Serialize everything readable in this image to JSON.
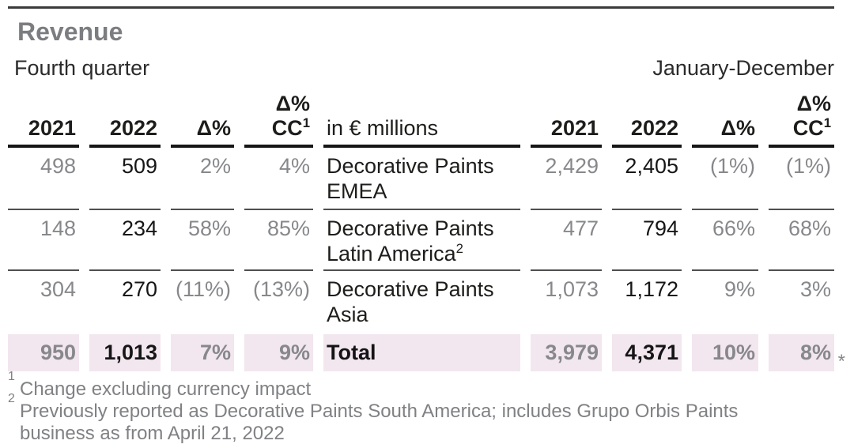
{
  "colors": {
    "accent_total_bg": "#f2e6ef",
    "muted_text": "#87888b",
    "dark_text": "#1d1d1b",
    "title_gray": "#7c7d80"
  },
  "title": "Revenue",
  "periods": {
    "left": "Fourth quarter",
    "right": "January-December"
  },
  "unit_label": "in € millions",
  "columns": {
    "y2021": "2021",
    "y2022": "2022",
    "delta": "Δ%",
    "delta_cc_line1": "Δ%",
    "delta_cc_line2": "CC",
    "delta_cc_sup": "1"
  },
  "rows": [
    {
      "name_line1": "Decorative Paints",
      "name_line2": "EMEA",
      "name_sup": "",
      "q4_2021": "498",
      "q4_2022": "509",
      "q4_delta": "2%",
      "q4_delta_cc": "4%",
      "fy_2021": "2,429",
      "fy_2022": "2,405",
      "fy_delta": "(1%)",
      "fy_delta_cc": "(1%)"
    },
    {
      "name_line1": "Decorative Paints",
      "name_line2": "Latin America",
      "name_sup": "2",
      "q4_2021": "148",
      "q4_2022": "234",
      "q4_delta": "58%",
      "q4_delta_cc": "85%",
      "fy_2021": "477",
      "fy_2022": "794",
      "fy_delta": "66%",
      "fy_delta_cc": "68%"
    },
    {
      "name_line1": "Decorative Paints",
      "name_line2": "Asia",
      "name_sup": "",
      "q4_2021": "304",
      "q4_2022": "270",
      "q4_delta": "(11%)",
      "q4_delta_cc": "(13%)",
      "fy_2021": "1,073",
      "fy_2022": "1,172",
      "fy_delta": "9%",
      "fy_delta_cc": "3%"
    }
  ],
  "total": {
    "label": "Total",
    "q4_2021": "950",
    "q4_2022": "1,013",
    "q4_delta": "7%",
    "q4_delta_cc": "9%",
    "fy_2021": "3,979",
    "fy_2022": "4,371",
    "fy_delta": "10%",
    "fy_delta_cc": "8%",
    "asterisk": "*"
  },
  "footnotes": [
    {
      "marker": "1",
      "text": "Change excluding currency impact"
    },
    {
      "marker": "2",
      "text": "Previously reported as Decorative Paints South America; includes Grupo Orbis Paints business as from April 21, 2022"
    }
  ]
}
